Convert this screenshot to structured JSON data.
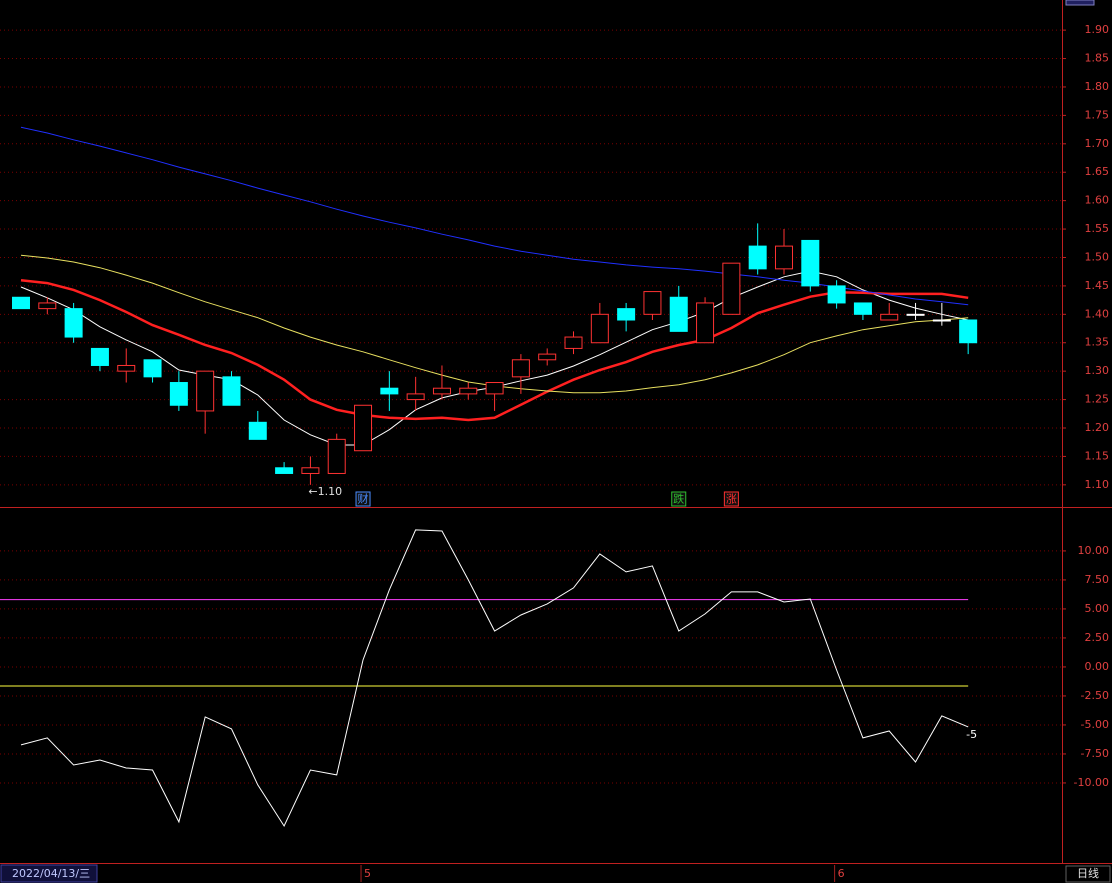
{
  "chart_data": [
    {
      "type": "candlestick",
      "categories": [
        "2022/04/13/三",
        null,
        null,
        null,
        null,
        null,
        null,
        null,
        null,
        null,
        null,
        null,
        null,
        "5",
        null,
        null,
        null,
        null,
        null,
        null,
        null,
        null,
        null,
        null,
        null,
        null,
        null,
        null,
        null,
        null,
        null,
        "6",
        null,
        null,
        null,
        null,
        null
      ],
      "open": [
        1.43,
        1.41,
        1.41,
        1.34,
        1.3,
        1.32,
        1.28,
        1.23,
        1.29,
        1.21,
        1.13,
        1.12,
        1.12,
        1.16,
        1.27,
        1.25,
        1.26,
        1.26,
        1.26,
        1.29,
        1.32,
        1.34,
        1.35,
        1.41,
        1.4,
        1.43,
        1.35,
        1.4,
        1.52,
        1.48,
        1.53,
        1.45,
        1.42,
        1.39,
        1.4,
        1.39,
        1.39
      ],
      "high": [
        1.43,
        1.43,
        1.42,
        1.34,
        1.34,
        1.32,
        1.3,
        1.3,
        1.3,
        1.23,
        1.14,
        1.15,
        1.19,
        1.24,
        1.3,
        1.29,
        1.31,
        1.28,
        1.28,
        1.33,
        1.34,
        1.37,
        1.42,
        1.42,
        1.44,
        1.45,
        1.43,
        1.49,
        1.56,
        1.55,
        1.53,
        1.46,
        1.42,
        1.42,
        1.42,
        1.42,
        1.39
      ],
      "low": [
        1.41,
        1.4,
        1.35,
        1.3,
        1.28,
        1.28,
        1.23,
        1.19,
        1.24,
        1.18,
        1.12,
        1.1,
        1.12,
        1.16,
        1.23,
        1.23,
        1.25,
        1.25,
        1.23,
        1.26,
        1.31,
        1.33,
        1.35,
        1.37,
        1.39,
        1.37,
        1.35,
        1.4,
        1.47,
        1.47,
        1.44,
        1.41,
        1.39,
        1.39,
        1.39,
        1.38,
        1.33
      ],
      "close": [
        1.41,
        1.42,
        1.36,
        1.31,
        1.31,
        1.29,
        1.24,
        1.3,
        1.24,
        1.18,
        1.12,
        1.13,
        1.18,
        1.24,
        1.26,
        1.26,
        1.27,
        1.27,
        1.28,
        1.32,
        1.33,
        1.36,
        1.4,
        1.39,
        1.44,
        1.37,
        1.42,
        1.49,
        1.48,
        1.52,
        1.45,
        1.42,
        1.4,
        1.4,
        1.4,
        1.39,
        1.35
      ],
      "up_color": "#ff3232",
      "down_color": "#00ffff",
      "flat_color": "#ffffff",
      "series": [
        {
          "color": "#ffffff",
          "values": [
            1.448,
            1.429,
            1.408,
            1.378,
            1.355,
            1.334,
            1.302,
            1.293,
            1.285,
            1.258,
            1.214,
            1.188,
            1.17,
            1.17,
            1.197,
            1.232,
            1.253,
            1.264,
            1.272,
            1.283,
            1.293,
            1.309,
            1.329,
            1.351,
            1.373,
            1.387,
            1.404,
            1.429,
            1.448,
            1.466,
            1.476,
            1.466,
            1.443,
            1.425,
            1.411,
            1.4,
            1.39
          ]
        },
        {
          "color": "#ff2020",
          "width": 2.5,
          "values": [
            1.46,
            1.455,
            1.443,
            1.425,
            1.404,
            1.381,
            1.364,
            1.346,
            1.332,
            1.311,
            1.285,
            1.25,
            1.232,
            1.223,
            1.218,
            1.216,
            1.218,
            1.214,
            1.218,
            1.241,
            1.264,
            1.285,
            1.302,
            1.316,
            1.334,
            1.346,
            1.355,
            1.376,
            1.402,
            1.417,
            1.431,
            1.439,
            1.438,
            1.436,
            1.436,
            1.436,
            1.429
          ]
        },
        {
          "color": "#e8e060",
          "values": [
            1.504,
            1.499,
            1.492,
            1.482,
            1.469,
            1.455,
            1.438,
            1.422,
            1.408,
            1.394,
            1.376,
            1.36,
            1.346,
            1.334,
            1.32,
            1.306,
            1.293,
            1.281,
            1.274,
            1.269,
            1.265,
            1.262,
            1.262,
            1.265,
            1.271,
            1.276,
            1.285,
            1.297,
            1.311,
            1.329,
            1.35,
            1.362,
            1.373,
            1.38,
            1.387,
            1.39,
            1.394
          ]
        },
        {
          "color": "#2030ff",
          "values": [
            1.729,
            1.719,
            1.707,
            1.696,
            1.684,
            1.672,
            1.659,
            1.647,
            1.635,
            1.622,
            1.61,
            1.598,
            1.585,
            1.573,
            1.562,
            1.552,
            1.541,
            1.531,
            1.52,
            1.511,
            1.504,
            1.497,
            1.492,
            1.487,
            1.483,
            1.48,
            1.476,
            1.471,
            1.466,
            1.46,
            1.455,
            1.448,
            1.441,
            1.434,
            1.427,
            1.422,
            1.417
          ]
        }
      ],
      "low_label": "←1.10",
      "events": [
        {
          "index": 13,
          "text": "财",
          "color": "#4a8cff"
        },
        {
          "index": 25,
          "text": "跌",
          "color": "#30c030"
        },
        {
          "index": 27,
          "text": "涨",
          "color": "#ff3030"
        }
      ],
      "ylim": [
        1.061,
        1.953
      ],
      "yticks": [
        {
          "value": 1.1,
          "label": "1.10"
        },
        1.15,
        {
          "value": 1.2,
          "label": "1.20"
        },
        1.25,
        {
          "value": 1.3,
          "label": "1.30"
        },
        1.35,
        {
          "value": 1.4,
          "label": "1.40"
        },
        1.45,
        {
          "value": 1.5,
          "label": "1.50"
        },
        1.55,
        {
          "value": 1.6,
          "label": "1.60"
        },
        1.65,
        {
          "value": 1.7,
          "label": "1.70"
        },
        1.75,
        {
          "value": 1.8,
          "label": "1.80"
        },
        1.85,
        {
          "value": 1.9,
          "label": "1.90"
        }
      ],
      "grid": true,
      "period": "日线"
    },
    {
      "type": "line",
      "series": [
        {
          "color": "#ffffff",
          "values": [
            -6.72,
            -6.12,
            -8.45,
            -8.02,
            -8.71,
            -8.88,
            -13.36,
            -4.31,
            -5.34,
            -10.17,
            -13.71,
            -8.88,
            -9.31,
            0.6,
            6.64,
            11.81,
            11.72,
            7.5,
            3.1,
            4.48,
            5.43,
            6.81,
            9.74,
            8.19,
            8.71,
            3.1,
            4.57,
            6.47,
            6.47,
            5.6,
            5.86,
            -0.26,
            -6.12,
            -5.52,
            -8.19,
            -4.22,
            -5.17
          ],
          "value_labels": [
            null,
            null,
            null,
            null,
            null,
            null,
            null,
            null,
            null,
            null,
            null,
            null,
            null,
            null,
            null,
            null,
            null,
            null,
            null,
            null,
            null,
            null,
            null,
            null,
            null,
            null,
            null,
            null,
            null,
            null,
            null,
            null,
            null,
            null,
            null,
            null,
            "-5"
          ]
        }
      ],
      "hlines": [
        {
          "value": 5.8,
          "color": "#ff40ff"
        },
        {
          "value": -1.64,
          "color": "#ffff40"
        }
      ],
      "ylim": [
        -16.9,
        13.7
      ],
      "yticks": [
        {
          "value": -10,
          "label": "-10.00"
        },
        {
          "value": -7.5,
          "label": "-7.50"
        },
        {
          "value": -5,
          "label": "-5.00"
        },
        {
          "value": -2.5,
          "label": "-2.50"
        },
        {
          "value": 0,
          "label": "0.00"
        },
        {
          "value": 2.5,
          "label": "2.50"
        },
        {
          "value": 5,
          "label": "5.00"
        },
        {
          "value": 7.5,
          "label": "7.50"
        },
        {
          "value": 10,
          "label": "10.00"
        }
      ],
      "grid": true
    }
  ]
}
